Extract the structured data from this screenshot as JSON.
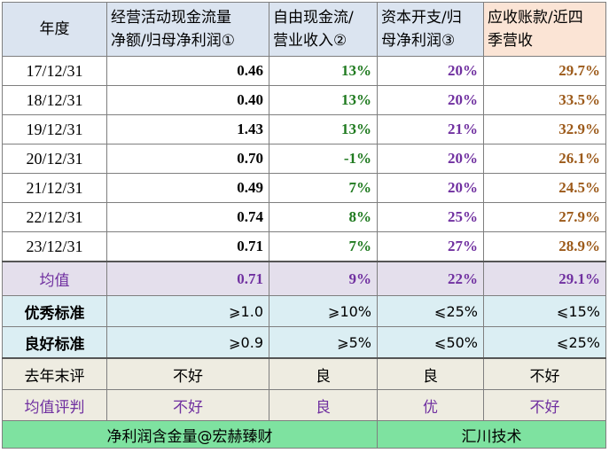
{
  "headers": [
    "年度",
    "经营活动现金流量\n净额/归母净利润①",
    "自由现金流/\n营业收入②",
    "资本开支/归\n母净利润③",
    "应收账款/近四\n季营收"
  ],
  "rows": [
    {
      "date": "17/12/31",
      "v1": "0.46",
      "v2": "13%",
      "v3": "20%",
      "v4": "29.7%"
    },
    {
      "date": "18/12/31",
      "v1": "0.40",
      "v2": "13%",
      "v3": "20%",
      "v4": "33.5%"
    },
    {
      "date": "19/12/31",
      "v1": "1.43",
      "v2": "13%",
      "v3": "21%",
      "v4": "32.9%"
    },
    {
      "date": "20/12/31",
      "v1": "0.70",
      "v2": "-1%",
      "v3": "20%",
      "v4": "26.1%"
    },
    {
      "date": "21/12/31",
      "v1": "0.49",
      "v2": "7%",
      "v3": "20%",
      "v4": "24.5%"
    },
    {
      "date": "22/12/31",
      "v1": "0.74",
      "v2": "8%",
      "v3": "25%",
      "v4": "27.9%"
    },
    {
      "date": "23/12/31",
      "v1": "0.71",
      "v2": "7%",
      "v3": "27%",
      "v4": "28.9%"
    }
  ],
  "average": {
    "label": "均值",
    "v1": "0.71",
    "v2": "9%",
    "v3": "22%",
    "v4": "29.1%"
  },
  "excellent": {
    "label": "优秀标准",
    "v1": "⩾1.0",
    "v2": "⩾10%",
    "v3": "⩽25%",
    "v4": "⩽15%"
  },
  "good": {
    "label": "良好标准",
    "v1": "⩾0.9",
    "v2": "⩾5%",
    "v3": "⩽50%",
    "v4": "⩽25%"
  },
  "last_year": {
    "label": "去年末评",
    "v1": "不好",
    "v2": "良",
    "v3": "良",
    "v4": "不好"
  },
  "avg_judge": {
    "label": "均值评判",
    "v1": "不好",
    "v2": "良",
    "v3": "优",
    "v4": "不好"
  },
  "footer": {
    "left": "净利润含金量@宏赫臻财",
    "right": "汇川技术"
  }
}
